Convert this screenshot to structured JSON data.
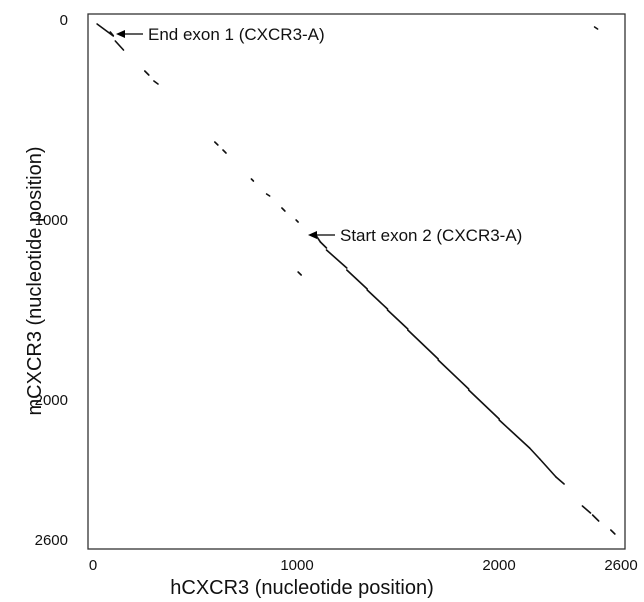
{
  "chart_data": {
    "type": "scatter",
    "title": "",
    "xlabel": "hCXCR3 (nucleotide position)",
    "ylabel": "mCXCR3 (nucleotide position)",
    "xlim": [
      0,
      2600
    ],
    "ylim": [
      0,
      2600
    ],
    "y_inverted": true,
    "grid": false,
    "x_ticks": [
      "0",
      "1000",
      "2000",
      "2600"
    ],
    "y_ticks": [
      "0",
      "1000",
      "2000",
      "2600"
    ],
    "annotations": [
      {
        "text": "End exon 1 (CXCR3-A)",
        "x": 130,
        "y": 70
      },
      {
        "text": "Start exon 2 (CXCR3-A)",
        "x": 1140,
        "y": 1110
      }
    ],
    "segments": [
      {
        "x": [
          20,
          100
        ],
        "y": [
          20,
          80
        ]
      },
      {
        "x": [
          85,
          100
        ],
        "y": [
          60,
          78
        ]
      },
      {
        "x": [
          110,
          150
        ],
        "y": [
          105,
          150
        ]
      },
      {
        "x": [
          255,
          275
        ],
        "y": [
          255,
          275
        ]
      },
      {
        "x": [
          300,
          320
        ],
        "y": [
          305,
          320
        ]
      },
      {
        "x": [
          2470,
          2485
        ],
        "y": [
          35,
          45
        ]
      },
      {
        "x": [
          600,
          615
        ],
        "y": [
          610,
          625
        ]
      },
      {
        "x": [
          640,
          655
        ],
        "y": [
          650,
          665
        ]
      },
      {
        "x": [
          780,
          790
        ],
        "y": [
          795,
          805
        ]
      },
      {
        "x": [
          855,
          870
        ],
        "y": [
          870,
          880
        ]
      },
      {
        "x": [
          930,
          945
        ],
        "y": [
          940,
          955
        ]
      },
      {
        "x": [
          1000,
          1010
        ],
        "y": [
          1000,
          1010
        ]
      },
      {
        "x": [
          1010,
          1025
        ],
        "y": [
          1260,
          1275
        ]
      },
      {
        "x": [
          1100,
          1120
        ],
        "y": [
          1080,
          1110
        ]
      },
      {
        "x": [
          1120,
          1150
        ],
        "y": [
          1110,
          1140
        ]
      },
      {
        "x": [
          1150,
          1250
        ],
        "y": [
          1150,
          1240
        ]
      },
      {
        "x": [
          1250,
          1350
        ],
        "y": [
          1250,
          1345
        ]
      },
      {
        "x": [
          1350,
          1450
        ],
        "y": [
          1350,
          1445
        ]
      },
      {
        "x": [
          1450,
          1550
        ],
        "y": [
          1450,
          1545
        ]
      },
      {
        "x": [
          1550,
          1700
        ],
        "y": [
          1550,
          1695
        ]
      },
      {
        "x": [
          1700,
          1850
        ],
        "y": [
          1700,
          1845
        ]
      },
      {
        "x": [
          1850,
          2000
        ],
        "y": [
          1850,
          1995
        ]
      },
      {
        "x": [
          2000,
          2150
        ],
        "y": [
          2000,
          2140
        ]
      },
      {
        "x": [
          2150,
          2200
        ],
        "y": [
          2140,
          2195
        ]
      },
      {
        "x": [
          2200,
          2280
        ],
        "y": [
          2195,
          2285
        ]
      },
      {
        "x": [
          2280,
          2320
        ],
        "y": [
          2285,
          2320
        ]
      },
      {
        "x": [
          2410,
          2450
        ],
        "y": [
          2430,
          2465
        ]
      },
      {
        "x": [
          2460,
          2490
        ],
        "y": [
          2475,
          2505
        ]
      },
      {
        "x": [
          2550,
          2570
        ],
        "y": [
          2550,
          2570
        ]
      }
    ]
  }
}
